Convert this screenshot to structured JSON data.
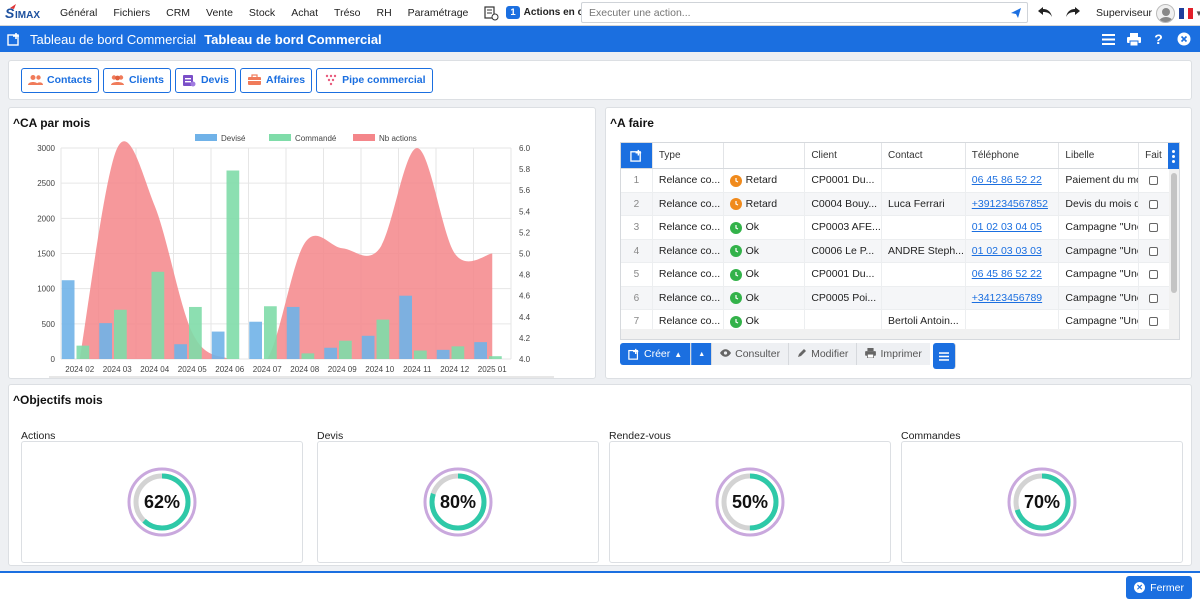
{
  "app": {
    "logo": "SIMAX"
  },
  "menu": [
    "Général",
    "Fichiers",
    "CRM",
    "Vente",
    "Stock",
    "Achat",
    "Tréso",
    "RH",
    "Paramétrage"
  ],
  "actions_running": {
    "count": "1",
    "label": "Actions en cours"
  },
  "exec": {
    "placeholder": "Executer une action..."
  },
  "user": {
    "name": "Superviseur"
  },
  "title": {
    "module": "Tableau de bord Commercial",
    "page": "Tableau de bord Commercial"
  },
  "shortcuts": [
    {
      "label": "Contacts",
      "icon": "contacts-icon"
    },
    {
      "label": "Clients",
      "icon": "clients-icon"
    },
    {
      "label": "Devis",
      "icon": "devis-icon"
    },
    {
      "label": "Affaires",
      "icon": "affaires-icon"
    },
    {
      "label": "Pipe commercial",
      "icon": "pipe-icon"
    }
  ],
  "ca": {
    "title": "^CA par mois"
  },
  "chart_data": {
    "type": "bar",
    "categories": [
      "2024 02",
      "2024 03",
      "2024 04",
      "2024 05",
      "2024 06",
      "2024 07",
      "2024 08",
      "2024 09",
      "2024 10",
      "2024 11",
      "2024 12",
      "2025 01"
    ],
    "series": [
      {
        "name": "Devisé",
        "type": "bar",
        "axis": "left",
        "color": "#70b2e8",
        "values": [
          1120,
          510,
          0,
          210,
          390,
          530,
          740,
          160,
          330,
          900,
          130,
          240
        ]
      },
      {
        "name": "Commandé",
        "type": "bar",
        "axis": "left",
        "color": "#7fdca9",
        "values": [
          190,
          700,
          1240,
          740,
          2680,
          750,
          80,
          260,
          560,
          120,
          180,
          40
        ]
      },
      {
        "name": "Nb actions",
        "type": "area",
        "axis": "right",
        "color": "#f4868a",
        "values": [
          4.0,
          6.0,
          5.45,
          4.25,
          4.0,
          4.0,
          5.1,
          5.05,
          5.05,
          6.0,
          5.0,
          5.0
        ]
      }
    ],
    "ylim_left": [
      0,
      3000
    ],
    "yticks_left": [
      0,
      500,
      1000,
      1500,
      2000,
      2500,
      3000
    ],
    "ylim_right": [
      4.0,
      6.0
    ],
    "yticks_right": [
      "4.0",
      "4.2",
      "4.4",
      "4.6",
      "4.8",
      "5.0",
      "5.2",
      "5.4",
      "5.6",
      "5.8",
      "6.0"
    ],
    "legend": "top-center",
    "grid": true
  },
  "todo": {
    "title": "^A faire",
    "columns": [
      "Type",
      "",
      "Client",
      "Contact",
      "Téléphone",
      "Libelle",
      "Fait"
    ],
    "rows": [
      {
        "n": "1",
        "type": "Relance co...",
        "status": "Retard",
        "client": "CP0001 Du...",
        "contact": "",
        "tel": "06 45 86 52 22",
        "libelle": "Paiement du mois de",
        "fait": false
      },
      {
        "n": "2",
        "type": "Relance co...",
        "status": "Retard",
        "client": "C0004 Bouy...",
        "contact": "Luca Ferrari",
        "tel": "+391234567852",
        "libelle": "Devis du mois d",
        "fait": false
      },
      {
        "n": "3",
        "type": "Relance co...",
        "status": "Ok",
        "client": "CP0003 AFE...",
        "contact": "",
        "tel": "01 02 03 04 05",
        "libelle": "Campagne \"Une",
        "fait": false
      },
      {
        "n": "4",
        "type": "Relance co...",
        "status": "Ok",
        "client": "C0006 Le P...",
        "contact": "ANDRE Steph...",
        "tel": "01 02 03 03 03",
        "libelle": "Campagne \"Une",
        "fait": false
      },
      {
        "n": "5",
        "type": "Relance co...",
        "status": "Ok",
        "client": "CP0001 Du...",
        "contact": "",
        "tel": "06 45 86 52 22",
        "libelle": "Campagne \"Une",
        "fait": false
      },
      {
        "n": "6",
        "type": "Relance co...",
        "status": "Ok",
        "client": "CP0005 Poi...",
        "contact": "",
        "tel": "+34123456789",
        "libelle": "Campagne \"Une",
        "fait": false
      },
      {
        "n": "7",
        "type": "Relance co...",
        "status": "Ok",
        "client": "",
        "contact": "Bertoli Antoin...",
        "tel": "",
        "libelle": "Campagne \"Une",
        "fait": false
      }
    ],
    "actions": {
      "create": "Créer",
      "view": "Consulter",
      "edit": "Modifier",
      "print": "Imprimer"
    },
    "status_colors": {
      "Retard": "#f08a1c",
      "Ok": "#33b24a"
    }
  },
  "objectives": {
    "title": "^Objectifs mois",
    "items": [
      {
        "label": "Actions",
        "value": "62%",
        "fraction": 0.62
      },
      {
        "label": "Devis",
        "value": "80%",
        "fraction": 0.8
      },
      {
        "label": "Rendez-vous",
        "value": "50%",
        "fraction": 0.5
      },
      {
        "label": "Commandes",
        "value": "70%",
        "fraction": 0.7
      }
    ]
  },
  "footer": {
    "close": "Fermer"
  },
  "colors": {
    "accent": "#1b6fe0",
    "gauge_outer": "#c9a8dd",
    "gauge_fill": "#2ec9a8",
    "gauge_track": "#d3d3d3"
  }
}
